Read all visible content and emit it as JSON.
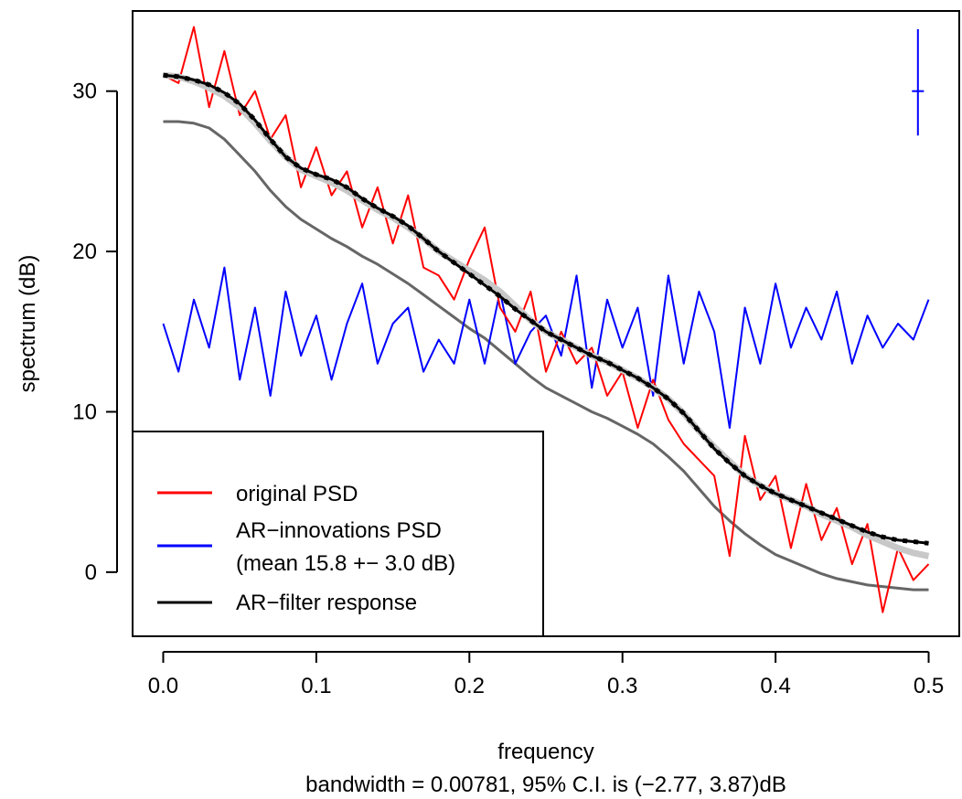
{
  "chart_data": {
    "type": "line",
    "xlabel": "frequency",
    "subtitle": "bandwidth = 0.00781, 95% C.I. is (−2.77, 3.87)dB",
    "ylabel": "spectrum (dB)",
    "xlim": [
      -0.02,
      0.52
    ],
    "ylim": [
      -4,
      35
    ],
    "x_ticks": [
      0.0,
      0.1,
      0.2,
      0.3,
      0.4,
      0.5
    ],
    "x_tick_labels": [
      "0.0",
      "0.1",
      "0.2",
      "0.3",
      "0.4",
      "0.5"
    ],
    "y_ticks": [
      0,
      10,
      20,
      30
    ],
    "y_tick_labels": [
      "0",
      "10",
      "20",
      "30"
    ],
    "grid": false,
    "legend_position": "bottom-left",
    "legend": [
      {
        "label": "original PSD",
        "color": "#ff0000"
      },
      {
        "label": "AR−innovations PSD",
        "label2": "(mean 15.8 +− 3.0 dB)",
        "color": "#0000ff"
      },
      {
        "label": "AR−filter response",
        "color": "#000000"
      }
    ],
    "ci_marker": {
      "x": 0.493,
      "center": 30.0,
      "low": 27.23,
      "high": 33.87,
      "half_width": 0.0039,
      "color": "#0000ff"
    },
    "series": [
      {
        "name": "original PSD",
        "color": "#ff0000",
        "x": [
          0.0,
          0.01,
          0.02,
          0.03,
          0.04,
          0.05,
          0.06,
          0.07,
          0.08,
          0.09,
          0.1,
          0.11,
          0.12,
          0.13,
          0.14,
          0.15,
          0.16,
          0.17,
          0.18,
          0.19,
          0.2,
          0.21,
          0.22,
          0.23,
          0.24,
          0.25,
          0.26,
          0.27,
          0.28,
          0.29,
          0.3,
          0.31,
          0.32,
          0.33,
          0.34,
          0.35,
          0.36,
          0.37,
          0.38,
          0.39,
          0.4,
          0.41,
          0.42,
          0.43,
          0.44,
          0.45,
          0.46,
          0.47,
          0.48,
          0.49,
          0.5
        ],
        "y": [
          31.0,
          30.5,
          34.0,
          29.0,
          32.5,
          28.5,
          30.0,
          27.0,
          28.5,
          24.0,
          26.5,
          23.5,
          25.0,
          21.5,
          24.0,
          20.5,
          23.5,
          19.0,
          18.5,
          17.0,
          19.5,
          21.5,
          16.5,
          15.0,
          17.5,
          12.5,
          15.0,
          13.0,
          14.0,
          11.0,
          12.5,
          9.0,
          12.0,
          9.5,
          8.0,
          7.0,
          6.0,
          1.0,
          8.5,
          4.5,
          6.0,
          1.5,
          5.5,
          2.0,
          4.0,
          0.5,
          3.0,
          -2.5,
          1.5,
          -0.5,
          0.5
        ]
      },
      {
        "name": "AR−innovations PSD",
        "color": "#0000ff",
        "x": [
          0.0,
          0.01,
          0.02,
          0.03,
          0.04,
          0.05,
          0.06,
          0.07,
          0.08,
          0.09,
          0.1,
          0.11,
          0.12,
          0.13,
          0.14,
          0.15,
          0.16,
          0.17,
          0.18,
          0.19,
          0.2,
          0.21,
          0.22,
          0.23,
          0.24,
          0.25,
          0.26,
          0.27,
          0.28,
          0.29,
          0.3,
          0.31,
          0.32,
          0.33,
          0.34,
          0.35,
          0.36,
          0.37,
          0.38,
          0.39,
          0.4,
          0.41,
          0.42,
          0.43,
          0.44,
          0.45,
          0.46,
          0.47,
          0.48,
          0.49,
          0.5
        ],
        "y": [
          15.5,
          12.5,
          17.0,
          14.0,
          19.0,
          12.0,
          16.5,
          11.0,
          17.5,
          13.5,
          16.0,
          12.0,
          15.5,
          18.0,
          13.0,
          15.5,
          16.5,
          12.5,
          14.5,
          13.0,
          17.0,
          13.0,
          17.5,
          13.0,
          15.0,
          16.0,
          13.5,
          18.5,
          11.5,
          17.0,
          14.0,
          16.5,
          11.0,
          18.5,
          13.0,
          17.5,
          15.0,
          9.0,
          16.5,
          13.0,
          18.0,
          14.0,
          16.5,
          14.5,
          17.5,
          13.0,
          16.0,
          14.0,
          15.5,
          14.5,
          17.0
        ]
      },
      {
        "name": "AR−filter response",
        "color": "#000000",
        "x": [
          0.0,
          0.01,
          0.02,
          0.03,
          0.04,
          0.05,
          0.06,
          0.07,
          0.08,
          0.09,
          0.1,
          0.11,
          0.12,
          0.13,
          0.14,
          0.15,
          0.16,
          0.17,
          0.18,
          0.19,
          0.2,
          0.21,
          0.22,
          0.23,
          0.24,
          0.25,
          0.26,
          0.27,
          0.28,
          0.29,
          0.3,
          0.31,
          0.32,
          0.33,
          0.34,
          0.35,
          0.36,
          0.37,
          0.38,
          0.39,
          0.4,
          0.41,
          0.42,
          0.43,
          0.44,
          0.45,
          0.46,
          0.47,
          0.48,
          0.49,
          0.5
        ],
        "y": [
          31.0,
          30.9,
          30.7,
          30.4,
          29.9,
          29.2,
          28.2,
          27.0,
          25.9,
          25.2,
          24.8,
          24.5,
          24.0,
          23.3,
          22.7,
          22.2,
          21.6,
          20.8,
          20.0,
          19.3,
          18.6,
          17.9,
          17.2,
          16.4,
          15.7,
          15.0,
          14.5,
          14.0,
          13.5,
          13.1,
          12.6,
          12.1,
          11.5,
          10.8,
          9.9,
          8.8,
          7.7,
          6.8,
          6.0,
          5.4,
          4.9,
          4.5,
          4.1,
          3.7,
          3.3,
          2.9,
          2.5,
          2.2,
          2.0,
          1.9,
          1.8
        ]
      },
      {
        "name": "",
        "color": "#c8c8c8",
        "x": [
          0.0,
          0.01,
          0.02,
          0.03,
          0.04,
          0.05,
          0.06,
          0.07,
          0.08,
          0.09,
          0.1,
          0.11,
          0.12,
          0.13,
          0.14,
          0.15,
          0.16,
          0.17,
          0.18,
          0.19,
          0.2,
          0.21,
          0.22,
          0.23,
          0.24,
          0.25,
          0.26,
          0.27,
          0.28,
          0.29,
          0.3,
          0.31,
          0.32,
          0.33,
          0.34,
          0.35,
          0.36,
          0.37,
          0.38,
          0.39,
          0.4,
          0.41,
          0.42,
          0.43,
          0.44,
          0.45,
          0.46,
          0.47,
          0.48,
          0.49,
          0.5
        ],
        "y": [
          31.0,
          30.9,
          30.6,
          30.2,
          29.7,
          29.0,
          28.0,
          26.9,
          25.9,
          25.1,
          24.7,
          24.3,
          23.8,
          23.2,
          22.6,
          22.1,
          21.5,
          20.8,
          20.0,
          19.4,
          18.8,
          18.2,
          17.5,
          16.6,
          15.7,
          15.0,
          14.5,
          14.0,
          13.5,
          13.1,
          12.6,
          12.1,
          11.5,
          10.8,
          9.9,
          8.8,
          7.8,
          6.9,
          6.0,
          5.4,
          4.9,
          4.5,
          4.1,
          3.6,
          3.2,
          2.8,
          2.3,
          1.9,
          1.5,
          1.2,
          1.0
        ]
      },
      {
        "name": "",
        "color": "#666666",
        "x": [
          0.0,
          0.01,
          0.02,
          0.03,
          0.04,
          0.05,
          0.06,
          0.07,
          0.08,
          0.09,
          0.1,
          0.11,
          0.12,
          0.13,
          0.14,
          0.15,
          0.16,
          0.17,
          0.18,
          0.19,
          0.2,
          0.21,
          0.22,
          0.23,
          0.24,
          0.25,
          0.26,
          0.27,
          0.28,
          0.29,
          0.3,
          0.31,
          0.32,
          0.33,
          0.34,
          0.35,
          0.36,
          0.37,
          0.38,
          0.39,
          0.4,
          0.41,
          0.42,
          0.43,
          0.44,
          0.45,
          0.46,
          0.47,
          0.48,
          0.49,
          0.5
        ],
        "y": [
          28.1,
          28.1,
          28.0,
          27.7,
          27.0,
          26.0,
          25.0,
          23.8,
          22.8,
          22.0,
          21.4,
          20.8,
          20.3,
          19.7,
          19.2,
          18.6,
          18.0,
          17.3,
          16.6,
          15.9,
          15.2,
          14.6,
          13.8,
          13.0,
          12.2,
          11.5,
          11.0,
          10.5,
          10.0,
          9.6,
          9.1,
          8.6,
          8.0,
          7.2,
          6.3,
          5.2,
          4.1,
          3.2,
          2.4,
          1.7,
          1.1,
          0.7,
          0.3,
          -0.1,
          -0.4,
          -0.6,
          -0.8,
          -0.9,
          -1.0,
          -1.1,
          -1.1
        ]
      }
    ]
  }
}
